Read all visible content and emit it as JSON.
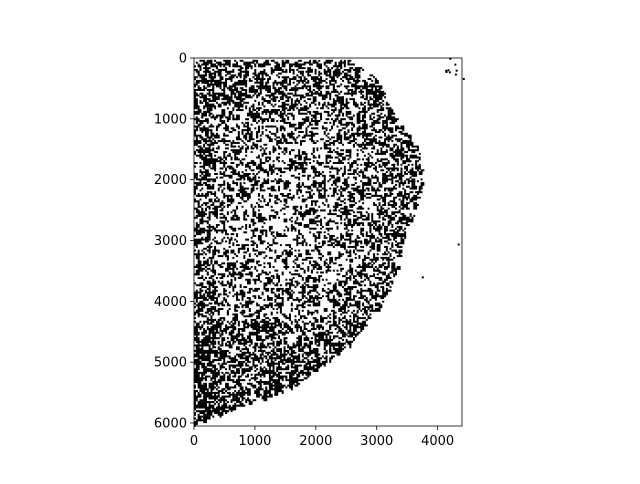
{
  "chart_data": {
    "type": "heatmap",
    "colormap": "binary (black pixels on white)",
    "title": "",
    "xlabel": "",
    "ylabel": "",
    "xlim": [
      0,
      4400
    ],
    "ylim": [
      6050,
      0
    ],
    "y_axis_inverted": true,
    "grid": false,
    "x_ticks": [
      {
        "value": 0,
        "label": "0"
      },
      {
        "value": 1000,
        "label": "1000"
      },
      {
        "value": 2000,
        "label": "2000"
      },
      {
        "value": 3000,
        "label": "3000"
      },
      {
        "value": 4000,
        "label": "4000"
      }
    ],
    "y_ticks": [
      {
        "value": 0,
        "label": "0"
      },
      {
        "value": 1000,
        "label": "1000"
      },
      {
        "value": 2000,
        "label": "2000"
      },
      {
        "value": 3000,
        "label": "3000"
      },
      {
        "value": 4000,
        "label": "4000"
      },
      {
        "value": 5000,
        "label": "5000"
      },
      {
        "value": 6000,
        "label": "6000"
      }
    ],
    "dark_region_boundary": [
      [
        0,
        20
      ],
      [
        2500,
        20
      ],
      [
        2950,
        300
      ],
      [
        3300,
        1000
      ],
      [
        3700,
        1500
      ],
      [
        3750,
        2000
      ],
      [
        3600,
        2600
      ],
      [
        3400,
        3050
      ],
      [
        3350,
        3500
      ],
      [
        3100,
        4000
      ],
      [
        2800,
        4400
      ],
      [
        2500,
        4800
      ],
      [
        2100,
        5100
      ],
      [
        1600,
        5450
      ],
      [
        1000,
        5650
      ],
      [
        500,
        5850
      ],
      [
        0,
        6050
      ]
    ],
    "dark_density_center": [
      1300,
      2800
    ],
    "isolated_pixel_clusters": [
      {
        "x": 4200,
        "y": 100,
        "count": 6
      },
      {
        "x": 4350,
        "y": 300,
        "count": 3
      },
      {
        "x": 4330,
        "y": 3050,
        "count": 1
      },
      {
        "x": 3740,
        "y": 3590,
        "count": 1
      }
    ]
  }
}
